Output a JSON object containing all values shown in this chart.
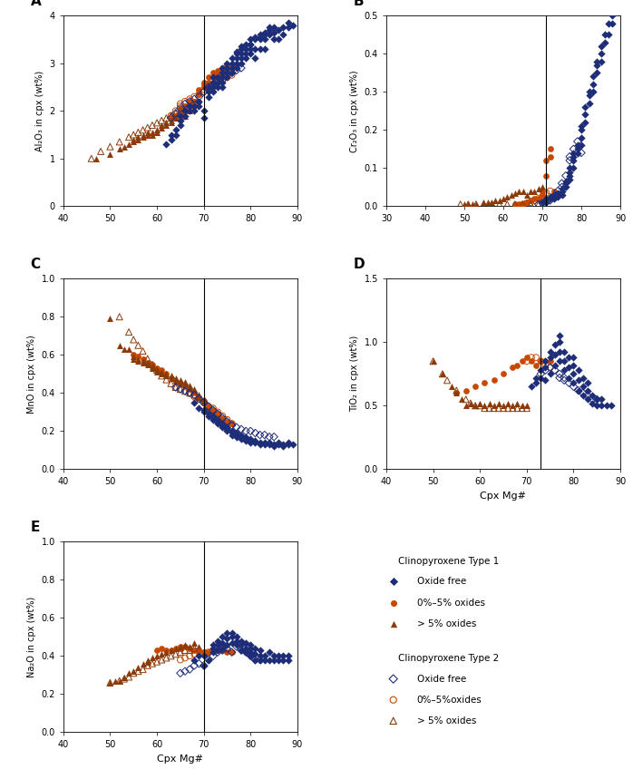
{
  "xlabels": {
    "A": "",
    "B": "",
    "C": "",
    "D": "Cpx Mg#",
    "E": "Cpx Mg#"
  },
  "ylabels": {
    "A": "Al₂O₃ in cpx (wt%)",
    "B": "Cr₂O₃ in cpx (wt%)",
    "C": "MnO in cpx (wt%)",
    "D": "TiO₂ in cpx (wt%)",
    "E": "Na₂O in cpx (wt%)"
  },
  "xlims": {
    "A": [
      40,
      90
    ],
    "B": [
      30,
      90
    ],
    "C": [
      40,
      90
    ],
    "D": [
      40,
      90
    ],
    "E": [
      40,
      90
    ]
  },
  "ylims": {
    "A": [
      0,
      4.0
    ],
    "B": [
      0,
      0.5
    ],
    "C": [
      0,
      1.0
    ],
    "D": [
      0,
      1.5
    ],
    "E": [
      0,
      1.0
    ]
  },
  "yticks": {
    "A": [
      0.0,
      1.0,
      2.0,
      3.0,
      4.0
    ],
    "B": [
      0.0,
      0.1,
      0.2,
      0.3,
      0.4,
      0.5
    ],
    "C": [
      0.0,
      0.2,
      0.4,
      0.6,
      0.8,
      1.0
    ],
    "D": [
      0.0,
      0.5,
      1.0,
      1.5
    ],
    "E": [
      0.0,
      0.2,
      0.4,
      0.6,
      0.8,
      1.0
    ]
  },
  "xticks": {
    "A": [
      40,
      50,
      60,
      70,
      80,
      90
    ],
    "B": [
      30,
      40,
      50,
      60,
      70,
      80,
      90
    ],
    "C": [
      40,
      50,
      60,
      70,
      80,
      90
    ],
    "D": [
      40,
      50,
      60,
      70,
      80,
      90
    ],
    "E": [
      40,
      50,
      60,
      70,
      80,
      90
    ]
  },
  "vline_x": {
    "A": 70,
    "B": 71,
    "C": 70,
    "D": 73,
    "E": 70
  },
  "blue": "#1e2d78",
  "orange": "#c84800",
  "brown_tri": "#8B3A0A",
  "legend_title1": "Clinopyroxene Type 1",
  "legend_items1": [
    "◆ Oxide free",
    "● 0%–5% oxides",
    "▲ > 5% oxides"
  ],
  "legend_title2": "Clinopyroxene Type 2",
  "legend_items2": [
    "◇ Oxide free",
    "○ 0%–5%oxides",
    "△ > 5% oxides"
  ],
  "t1_of_A_x": [
    62,
    63,
    63,
    64,
    64,
    65,
    65,
    65,
    66,
    66,
    67,
    67,
    68,
    68,
    69,
    69,
    70,
    70,
    71,
    71,
    71,
    72,
    72,
    72,
    72,
    73,
    73,
    73,
    74,
    74,
    74,
    74,
    74,
    75,
    75,
    75,
    75,
    76,
    76,
    76,
    76,
    77,
    77,
    77,
    77,
    77,
    78,
    78,
    78,
    78,
    78,
    79,
    79,
    79,
    79,
    80,
    80,
    80,
    80,
    80,
    81,
    81,
    81,
    81,
    82,
    82,
    82,
    82,
    83,
    83,
    83,
    83,
    84,
    84,
    84,
    85,
    85,
    85,
    86,
    86,
    87,
    87,
    88,
    88,
    89
  ],
  "t1_of_A_y": [
    1.3,
    1.4,
    1.5,
    1.5,
    1.6,
    1.7,
    1.8,
    1.9,
    1.9,
    2.0,
    2.0,
    2.1,
    2.0,
    2.1,
    2.1,
    2.2,
    1.85,
    2.0,
    2.3,
    2.4,
    2.5,
    2.4,
    2.5,
    2.6,
    2.7,
    2.5,
    2.6,
    2.7,
    2.5,
    2.6,
    2.7,
    2.8,
    2.9,
    2.7,
    2.8,
    2.9,
    3.0,
    2.8,
    2.9,
    3.0,
    3.1,
    2.9,
    3.0,
    3.1,
    3.2,
    3.25,
    3.0,
    3.1,
    3.2,
    3.3,
    3.35,
    3.1,
    3.2,
    3.3,
    3.4,
    3.2,
    3.3,
    3.4,
    3.4,
    3.5,
    3.1,
    3.3,
    3.5,
    3.55,
    3.3,
    3.5,
    3.55,
    3.6,
    3.3,
    3.5,
    3.6,
    3.65,
    3.6,
    3.7,
    3.75,
    3.5,
    3.65,
    3.75,
    3.5,
    3.7,
    3.6,
    3.75,
    3.75,
    3.85,
    3.8
  ],
  "t1_lo_A_x": [
    63,
    64,
    65,
    65,
    66,
    66,
    67,
    67,
    68,
    68,
    69,
    69,
    69,
    70,
    70,
    70,
    71,
    71,
    71,
    72,
    72,
    72,
    73,
    73,
    73,
    74,
    74,
    74,
    75,
    75,
    75,
    76,
    76,
    77
  ],
  "t1_lo_A_y": [
    1.85,
    1.9,
    1.95,
    2.05,
    2.0,
    2.1,
    2.1,
    2.2,
    2.1,
    2.2,
    2.2,
    2.35,
    2.45,
    2.5,
    2.55,
    2.6,
    2.5,
    2.6,
    2.7,
    2.6,
    2.7,
    2.8,
    2.7,
    2.75,
    2.85,
    2.7,
    2.8,
    2.9,
    2.8,
    2.85,
    2.95,
    2.9,
    2.95,
    2.95
  ],
  "t1_ho_A_x": [
    47,
    50,
    52,
    53,
    54,
    55,
    55,
    56,
    56,
    57,
    57,
    58,
    58,
    59,
    59,
    60,
    60,
    61,
    61,
    62,
    62,
    63,
    63,
    64,
    65,
    66,
    67,
    68
  ],
  "t1_ho_A_y": [
    1.0,
    1.1,
    1.2,
    1.25,
    1.3,
    1.35,
    1.4,
    1.4,
    1.45,
    1.45,
    1.5,
    1.5,
    1.55,
    1.5,
    1.55,
    1.55,
    1.6,
    1.65,
    1.7,
    1.7,
    1.75,
    1.75,
    1.8,
    1.85,
    1.85,
    1.9,
    2.0,
    2.05
  ],
  "t2_of_A_x": [
    63,
    64,
    65,
    66,
    67,
    68,
    69,
    70,
    71,
    71,
    72,
    72,
    73,
    73,
    74,
    75,
    76,
    77,
    78
  ],
  "t2_of_A_y": [
    1.85,
    1.95,
    2.05,
    2.15,
    2.2,
    2.25,
    2.3,
    2.4,
    2.45,
    2.5,
    2.5,
    2.55,
    2.6,
    2.65,
    2.65,
    2.75,
    2.8,
    2.85,
    2.9
  ],
  "t2_lo_A_x": [
    63,
    64,
    65,
    65,
    66,
    67,
    68,
    69,
    70,
    70,
    71,
    72,
    73,
    73,
    74,
    75,
    76
  ],
  "t2_lo_A_y": [
    1.9,
    2.0,
    2.1,
    2.15,
    2.2,
    2.25,
    2.3,
    2.35,
    2.4,
    2.45,
    2.5,
    2.55,
    2.6,
    2.65,
    2.65,
    2.7,
    2.75
  ],
  "t2_ho_A_x": [
    46,
    48,
    50,
    52,
    54,
    55,
    56,
    57,
    58,
    59,
    60,
    61,
    62,
    63,
    64,
    65
  ],
  "t2_ho_A_y": [
    1.0,
    1.15,
    1.25,
    1.35,
    1.45,
    1.5,
    1.55,
    1.6,
    1.65,
    1.7,
    1.75,
    1.8,
    1.85,
    1.9,
    1.95,
    2.0
  ],
  "t1_of_B_x": [
    70,
    71,
    71,
    72,
    72,
    73,
    73,
    73,
    74,
    74,
    74,
    75,
    75,
    75,
    76,
    76,
    76,
    77,
    77,
    77,
    77,
    78,
    78,
    78,
    78,
    79,
    79,
    79,
    80,
    80,
    80,
    80,
    81,
    81,
    81,
    82,
    82,
    82,
    83,
    83,
    83,
    84,
    84,
    84,
    85,
    85,
    85,
    86,
    86,
    87,
    87,
    88,
    88
  ],
  "t1_of_B_y": [
    0.01,
    0.01,
    0.02,
    0.02,
    0.025,
    0.02,
    0.025,
    0.03,
    0.025,
    0.03,
    0.035,
    0.03,
    0.04,
    0.045,
    0.05,
    0.06,
    0.065,
    0.07,
    0.08,
    0.09,
    0.1,
    0.1,
    0.12,
    0.13,
    0.14,
    0.14,
    0.15,
    0.16,
    0.16,
    0.18,
    0.2,
    0.21,
    0.22,
    0.24,
    0.26,
    0.27,
    0.29,
    0.3,
    0.3,
    0.32,
    0.34,
    0.35,
    0.37,
    0.38,
    0.38,
    0.4,
    0.42,
    0.43,
    0.45,
    0.45,
    0.48,
    0.48,
    0.5
  ],
  "t1_lo_B_x": [
    63,
    64,
    65,
    66,
    67,
    68,
    69,
    70,
    70,
    71,
    71,
    72,
    72,
    73
  ],
  "t1_lo_B_y": [
    0.005,
    0.005,
    0.005,
    0.01,
    0.015,
    0.02,
    0.02,
    0.03,
    0.04,
    0.08,
    0.12,
    0.13,
    0.15,
    0.04
  ],
  "t1_ho_B_x": [
    50,
    51,
    52,
    53,
    55,
    56,
    57,
    58,
    59,
    60,
    61,
    62,
    63,
    64,
    65,
    66,
    67,
    68,
    69,
    70
  ],
  "t1_ho_B_y": [
    0.005,
    0.005,
    0.005,
    0.005,
    0.01,
    0.01,
    0.01,
    0.015,
    0.015,
    0.02,
    0.025,
    0.03,
    0.035,
    0.04,
    0.04,
    0.03,
    0.04,
    0.04,
    0.045,
    0.05
  ],
  "t2_of_B_x": [
    69,
    70,
    71,
    72,
    73,
    74,
    75,
    75,
    76,
    77,
    77,
    78,
    79,
    80
  ],
  "t2_of_B_y": [
    0.005,
    0.008,
    0.01,
    0.015,
    0.025,
    0.04,
    0.05,
    0.06,
    0.08,
    0.12,
    0.13,
    0.15,
    0.17,
    0.14
  ],
  "t2_lo_B_x": [
    65,
    66,
    67,
    68,
    69,
    70,
    71,
    72
  ],
  "t2_lo_B_y": [
    0.005,
    0.008,
    0.01,
    0.015,
    0.02,
    0.025,
    0.035,
    0.04
  ],
  "t2_ho_B_x": [
    49,
    51,
    53,
    55,
    57,
    59,
    61,
    63,
    65,
    67,
    69
  ],
  "t2_ho_B_y": [
    0.005,
    0.005,
    0.005,
    0.005,
    0.005,
    0.005,
    0.005,
    0.005,
    0.005,
    0.005,
    0.005
  ],
  "t1_of_C_x": [
    68,
    69,
    70,
    70,
    71,
    71,
    72,
    72,
    72,
    73,
    73,
    73,
    74,
    74,
    74,
    75,
    75,
    75,
    76,
    76,
    76,
    77,
    77,
    77,
    78,
    78,
    78,
    79,
    79,
    79,
    80,
    80,
    80,
    81,
    81,
    82,
    82,
    83,
    83,
    84,
    84,
    85,
    85,
    86,
    86,
    87,
    87,
    88,
    88,
    89
  ],
  "t1_of_C_y": [
    0.35,
    0.32,
    0.31,
    0.3,
    0.29,
    0.28,
    0.28,
    0.27,
    0.26,
    0.26,
    0.25,
    0.24,
    0.24,
    0.23,
    0.22,
    0.22,
    0.21,
    0.2,
    0.2,
    0.19,
    0.18,
    0.19,
    0.18,
    0.17,
    0.18,
    0.17,
    0.16,
    0.17,
    0.16,
    0.15,
    0.16,
    0.15,
    0.14,
    0.15,
    0.14,
    0.14,
    0.13,
    0.14,
    0.13,
    0.14,
    0.13,
    0.13,
    0.12,
    0.14,
    0.13,
    0.13,
    0.12,
    0.14,
    0.13,
    0.13
  ],
  "t1_lo_C_x": [
    55,
    56,
    57,
    58,
    59,
    60,
    61,
    62,
    63,
    64,
    65,
    66,
    67,
    68,
    69,
    70,
    70,
    71,
    71,
    72,
    72,
    73,
    73,
    74,
    74,
    75,
    75,
    76
  ],
  "t1_lo_C_y": [
    0.6,
    0.59,
    0.58,
    0.56,
    0.55,
    0.53,
    0.52,
    0.5,
    0.48,
    0.46,
    0.45,
    0.44,
    0.42,
    0.4,
    0.38,
    0.36,
    0.35,
    0.33,
    0.32,
    0.31,
    0.3,
    0.29,
    0.28,
    0.27,
    0.26,
    0.25,
    0.24,
    0.24
  ],
  "t1_ho_C_x": [
    50,
    52,
    53,
    54,
    55,
    55,
    56,
    56,
    57,
    57,
    58,
    58,
    59,
    59,
    60,
    60,
    61,
    61,
    62,
    62,
    63,
    63,
    64,
    64,
    65,
    65,
    66,
    66,
    67,
    67,
    68,
    68,
    69,
    69,
    70,
    70
  ],
  "t1_ho_C_y": [
    0.79,
    0.65,
    0.63,
    0.63,
    0.58,
    0.59,
    0.57,
    0.58,
    0.56,
    0.57,
    0.55,
    0.56,
    0.53,
    0.54,
    0.51,
    0.52,
    0.51,
    0.5,
    0.49,
    0.5,
    0.48,
    0.49,
    0.47,
    0.48,
    0.46,
    0.47,
    0.45,
    0.46,
    0.43,
    0.44,
    0.41,
    0.42,
    0.38,
    0.39,
    0.37,
    0.36
  ],
  "t2_of_C_x": [
    64,
    65,
    66,
    67,
    68,
    69,
    70,
    71,
    72,
    73,
    74,
    75,
    76,
    77,
    78,
    79,
    80,
    81,
    82,
    83,
    84,
    85
  ],
  "t2_of_C_y": [
    0.43,
    0.42,
    0.41,
    0.4,
    0.39,
    0.37,
    0.35,
    0.33,
    0.31,
    0.29,
    0.27,
    0.25,
    0.23,
    0.22,
    0.21,
    0.2,
    0.2,
    0.19,
    0.18,
    0.18,
    0.17,
    0.17
  ],
  "t2_lo_C_x": [
    67,
    68,
    69,
    70,
    71,
    72,
    73,
    74,
    75,
    76
  ],
  "t2_lo_C_y": [
    0.4,
    0.38,
    0.37,
    0.35,
    0.33,
    0.32,
    0.3,
    0.28,
    0.26,
    0.24
  ],
  "t2_ho_C_x": [
    52,
    54,
    55,
    56,
    57,
    58,
    59,
    60,
    61,
    62,
    63,
    64,
    65,
    66,
    67,
    68
  ],
  "t2_ho_C_y": [
    0.8,
    0.72,
    0.68,
    0.65,
    0.62,
    0.58,
    0.55,
    0.52,
    0.49,
    0.47,
    0.45,
    0.43,
    0.42,
    0.41,
    0.4,
    0.39
  ],
  "t1_of_D_x": [
    71,
    72,
    72,
    73,
    73,
    74,
    74,
    74,
    75,
    75,
    75,
    76,
    76,
    76,
    77,
    77,
    77,
    77,
    78,
    78,
    78,
    79,
    79,
    79,
    80,
    80,
    80,
    80,
    81,
    81,
    81,
    82,
    82,
    82,
    83,
    83,
    83,
    84,
    84,
    85,
    85,
    86,
    86,
    87,
    88
  ],
  "t1_of_D_y": [
    0.65,
    0.68,
    0.72,
    0.72,
    0.78,
    0.7,
    0.8,
    0.85,
    0.75,
    0.88,
    0.92,
    0.82,
    0.9,
    0.98,
    0.85,
    0.92,
    1.0,
    1.05,
    0.78,
    0.85,
    0.92,
    0.72,
    0.8,
    0.88,
    0.68,
    0.75,
    0.82,
    0.88,
    0.62,
    0.7,
    0.78,
    0.58,
    0.65,
    0.72,
    0.55,
    0.62,
    0.68,
    0.52,
    0.58,
    0.5,
    0.55,
    0.5,
    0.55,
    0.5,
    0.5
  ],
  "t1_lo_D_x": [
    55,
    57,
    59,
    61,
    63,
    65,
    67,
    68,
    69,
    70,
    71,
    72,
    73,
    74,
    75
  ],
  "t1_lo_D_y": [
    0.6,
    0.62,
    0.65,
    0.68,
    0.7,
    0.75,
    0.8,
    0.82,
    0.85,
    0.88,
    0.85,
    0.82,
    0.85,
    0.85,
    0.85
  ],
  "t1_ho_D_x": [
    50,
    52,
    54,
    55,
    56,
    57,
    58,
    59,
    60,
    61,
    62,
    63,
    64,
    65,
    66,
    67,
    68,
    69,
    70
  ],
  "t1_ho_D_y": [
    0.85,
    0.75,
    0.65,
    0.6,
    0.55,
    0.5,
    0.52,
    0.5,
    0.52,
    0.5,
    0.52,
    0.5,
    0.52,
    0.5,
    0.52,
    0.5,
    0.52,
    0.5,
    0.5
  ],
  "t2_of_D_x": [
    73,
    74,
    75,
    76,
    77,
    77,
    78,
    78,
    79,
    80,
    81,
    82,
    83,
    84,
    85
  ],
  "t2_of_D_y": [
    0.75,
    0.78,
    0.8,
    0.78,
    0.75,
    0.72,
    0.72,
    0.7,
    0.68,
    0.65,
    0.62,
    0.6,
    0.58,
    0.55,
    0.55
  ],
  "t2_lo_D_x": [
    70,
    71,
    72,
    73,
    74,
    75
  ],
  "t2_lo_D_y": [
    0.85,
    0.88,
    0.88,
    0.85,
    0.82,
    0.8
  ],
  "t2_ho_D_x": [
    50,
    52,
    53,
    55,
    57,
    58,
    59,
    60,
    61,
    62,
    63,
    64,
    65,
    66,
    67,
    68,
    69,
    70
  ],
  "t2_ho_D_y": [
    0.85,
    0.75,
    0.7,
    0.62,
    0.55,
    0.52,
    0.5,
    0.5,
    0.48,
    0.48,
    0.48,
    0.48,
    0.48,
    0.48,
    0.48,
    0.48,
    0.48,
    0.48
  ],
  "t1_of_E_x": [
    68,
    69,
    70,
    70,
    71,
    72,
    72,
    72,
    73,
    73,
    73,
    74,
    74,
    74,
    75,
    75,
    75,
    76,
    76,
    76,
    77,
    77,
    77,
    78,
    78,
    78,
    79,
    79,
    79,
    80,
    80,
    80,
    80,
    81,
    81,
    81,
    82,
    82,
    82,
    83,
    83,
    84,
    84,
    85,
    85,
    86,
    86,
    87,
    87,
    88,
    88
  ],
  "t1_of_E_y": [
    0.38,
    0.4,
    0.35,
    0.4,
    0.38,
    0.42,
    0.44,
    0.46,
    0.43,
    0.46,
    0.48,
    0.44,
    0.47,
    0.5,
    0.46,
    0.49,
    0.52,
    0.47,
    0.5,
    0.52,
    0.46,
    0.48,
    0.5,
    0.43,
    0.46,
    0.48,
    0.42,
    0.44,
    0.47,
    0.4,
    0.42,
    0.44,
    0.46,
    0.38,
    0.41,
    0.44,
    0.38,
    0.4,
    0.43,
    0.38,
    0.4,
    0.38,
    0.42,
    0.38,
    0.4,
    0.38,
    0.4,
    0.38,
    0.4,
    0.38,
    0.4
  ],
  "t1_lo_E_x": [
    60,
    61,
    62,
    63,
    64,
    65,
    65,
    66,
    67,
    68,
    69,
    70,
    70,
    71,
    72,
    73,
    74,
    75,
    76
  ],
  "t1_lo_E_y": [
    0.43,
    0.44,
    0.43,
    0.43,
    0.44,
    0.44,
    0.45,
    0.45,
    0.44,
    0.43,
    0.43,
    0.42,
    0.42,
    0.42,
    0.43,
    0.43,
    0.43,
    0.42,
    0.42
  ],
  "t1_ho_E_x": [
    50,
    51,
    52,
    53,
    54,
    55,
    56,
    57,
    58,
    58,
    59,
    60,
    61,
    62,
    63,
    64,
    65,
    66,
    67,
    68,
    69
  ],
  "t1_ho_E_y": [
    0.26,
    0.27,
    0.27,
    0.29,
    0.31,
    0.32,
    0.34,
    0.36,
    0.38,
    0.37,
    0.39,
    0.4,
    0.41,
    0.42,
    0.43,
    0.44,
    0.45,
    0.46,
    0.45,
    0.47,
    0.45
  ],
  "t2_of_E_x": [
    65,
    66,
    67,
    68,
    69,
    70,
    71,
    72,
    73,
    74,
    74,
    75,
    76,
    77,
    78,
    79,
    80,
    81,
    82
  ],
  "t2_of_E_y": [
    0.31,
    0.32,
    0.33,
    0.35,
    0.36,
    0.35,
    0.38,
    0.4,
    0.42,
    0.43,
    0.44,
    0.44,
    0.42,
    0.45,
    0.43,
    0.42,
    0.4,
    0.38,
    0.38
  ],
  "t2_lo_E_x": [
    65,
    66,
    67,
    68,
    69,
    70,
    71,
    72,
    73,
    74,
    75
  ],
  "t2_lo_E_y": [
    0.38,
    0.39,
    0.4,
    0.41,
    0.42,
    0.41,
    0.42,
    0.43,
    0.43,
    0.44,
    0.43
  ],
  "t2_ho_E_x": [
    50,
    52,
    53,
    54,
    55,
    56,
    57,
    58,
    59,
    60,
    61,
    62,
    63,
    64,
    65,
    66,
    67,
    68
  ],
  "t2_ho_E_y": [
    0.26,
    0.27,
    0.28,
    0.29,
    0.31,
    0.32,
    0.33,
    0.35,
    0.36,
    0.37,
    0.38,
    0.39,
    0.4,
    0.41,
    0.42,
    0.43,
    0.43,
    0.44
  ]
}
